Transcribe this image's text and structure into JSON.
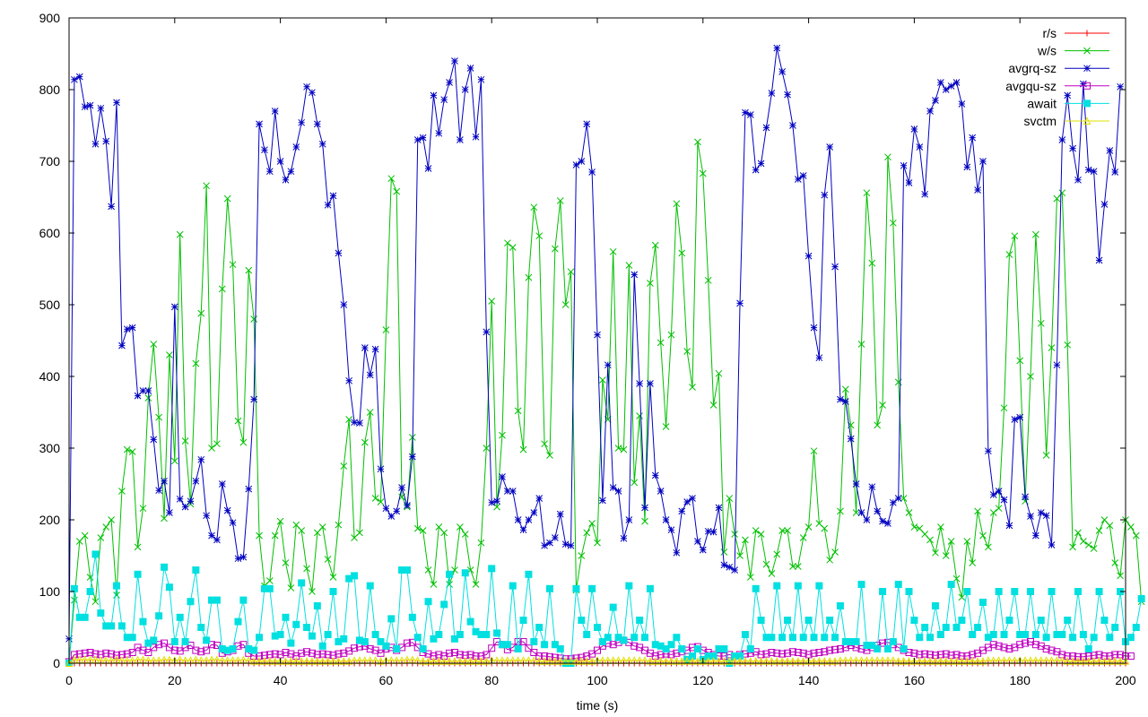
{
  "chart_data": {
    "type": "line",
    "title": "",
    "xlabel": "time (s)",
    "ylabel": "",
    "xlim": [
      0,
      200
    ],
    "ylim": [
      0,
      900
    ],
    "xticks": [
      0,
      20,
      40,
      60,
      80,
      100,
      120,
      140,
      160,
      180,
      200
    ],
    "yticks": [
      0,
      100,
      200,
      300,
      400,
      500,
      600,
      700,
      800,
      900
    ],
    "grid": false,
    "legend_position": "top-right",
    "x_start": 0,
    "x_step": 1,
    "series": [
      {
        "name": "r/s",
        "color": "#ff0000",
        "marker": "plus",
        "values": [
          0,
          0,
          0,
          0,
          0,
          0,
          0,
          0,
          0,
          0,
          0,
          0,
          0,
          0,
          0,
          0,
          0,
          0,
          0,
          0,
          0,
          0,
          0,
          0,
          0,
          0,
          0,
          0,
          0,
          0,
          0,
          0,
          0,
          0,
          0,
          0,
          0,
          0,
          0,
          0,
          0,
          0,
          0,
          0,
          0,
          0,
          0,
          0,
          0,
          0,
          0,
          0,
          0,
          0,
          0,
          0,
          0,
          0,
          0,
          0,
          0,
          0,
          0,
          0,
          0,
          0,
          0,
          0,
          0,
          0,
          0,
          0,
          0,
          0,
          0,
          0,
          0,
          0,
          0,
          0,
          0,
          0,
          0,
          0,
          0,
          0,
          0,
          0,
          0,
          0,
          0,
          0,
          0,
          0,
          0,
          0,
          0,
          0,
          0,
          0,
          0,
          0,
          0,
          0,
          0,
          0,
          0,
          0,
          0,
          0,
          0,
          0,
          0,
          0,
          0,
          0,
          0,
          0,
          0,
          0,
          0,
          0,
          0,
          0,
          0,
          0,
          0,
          0,
          0,
          0,
          0,
          0,
          0,
          0,
          0,
          0,
          0,
          0,
          0,
          0,
          0,
          0,
          0,
          0,
          0,
          0,
          0,
          0,
          0,
          0,
          0,
          0,
          0,
          0,
          0,
          0,
          0,
          0,
          0,
          0,
          0,
          0,
          0,
          0,
          0,
          0,
          0,
          0,
          0,
          0,
          0,
          0,
          0,
          0,
          0,
          0,
          0,
          0,
          0,
          0,
          0,
          0,
          0,
          0,
          0,
          0,
          0,
          0,
          0,
          0,
          0,
          0,
          0,
          0,
          0,
          0,
          0,
          0,
          0,
          0,
          0
        ]
      },
      {
        "name": "w/s",
        "color": "#00c000",
        "marker": "cross",
        "values": [
          0,
          88,
          170,
          178,
          120,
          86,
          175,
          190,
          200,
          95,
          240,
          298,
          295,
          162,
          216,
          370,
          445,
          343,
          202,
          430,
          282,
          598,
          310,
          222,
          418,
          488,
          666,
          300,
          306,
          522,
          648,
          556,
          338,
          308,
          548,
          480,
          178,
          108,
          115,
          178,
          198,
          140,
          105,
          193,
          185,
          132,
          100,
          182,
          190,
          145,
          120,
          193,
          275,
          340,
          175,
          182,
          308,
          350,
          230,
          225,
          465,
          676,
          658,
          232,
          218,
          315,
          188,
          185,
          130,
          110,
          190,
          182,
          110,
          130,
          190,
          180,
          130,
          110,
          168,
          300,
          505,
          218,
          318,
          586,
          580,
          352,
          298,
          538,
          636,
          596,
          306,
          290,
          578,
          645,
          500,
          546,
          102,
          150,
          182,
          195,
          168,
          395,
          340,
          574,
          300,
          298,
          555,
          252,
          345,
          198,
          530,
          583,
          447,
          330,
          458,
          641,
          572,
          435,
          385,
          727,
          683,
          534,
          360,
          404,
          155,
          230,
          180,
          150,
          172,
          120,
          185,
          180,
          138,
          125,
          152,
          185,
          185,
          135,
          135,
          175,
          190,
          296,
          195,
          188,
          144,
          155,
          212,
          382,
          332,
          210,
          445,
          656,
          558,
          332,
          360,
          706,
          614,
          392,
          230,
          210,
          190,
          188,
          180,
          172,
          154,
          190,
          150,
          170,
          118,
          92,
          170,
          140,
          212,
          178,
          162,
          210,
          216,
          356,
          570,
          596,
          422,
          226,
          400,
          598,
          474,
          290,
          440,
          648,
          656,
          444,
          162,
          182,
          170,
          165,
          160,
          185,
          200,
          192,
          140,
          122,
          200,
          190,
          178,
          86
        ]
      },
      {
        "name": "avgrq-sz",
        "color": "#0000c0",
        "marker": "star",
        "values": [
          34,
          814,
          818,
          776,
          778,
          724,
          774,
          728,
          637,
          782,
          443,
          466,
          468,
          373,
          380,
          380,
          312,
          241,
          254,
          210,
          497,
          229,
          218,
          226,
          254,
          284,
          206,
          178,
          172,
          250,
          213,
          196,
          146,
          148,
          243,
          368,
          752,
          716,
          686,
          770,
          700,
          674,
          686,
          720,
          754,
          804,
          796,
          752,
          724,
          639,
          652,
          572,
          500,
          394,
          336,
          335,
          440,
          402,
          438,
          271,
          216,
          205,
          212,
          245,
          220,
          288,
          730,
          733,
          690,
          792,
          739,
          786,
          810,
          840,
          730,
          800,
          830,
          734,
          814,
          462,
          224,
          226,
          260,
          240,
          240,
          200,
          186,
          200,
          210,
          230,
          164,
          168,
          175,
          208,
          166,
          164,
          695,
          700,
          752,
          685,
          458,
          227,
          416,
          245,
          240,
          174,
          200,
          542,
          390,
          217,
          390,
          262,
          240,
          200,
          186,
          154,
          212,
          225,
          230,
          170,
          158,
          184,
          183,
          217,
          137,
          134,
          130,
          502,
          768,
          765,
          688,
          697,
          747,
          795,
          858,
          825,
          793,
          750,
          675,
          680,
          568,
          468,
          426,
          653,
          720,
          553,
          368,
          365,
          313,
          250,
          210,
          200,
          246,
          212,
          198,
          195,
          224,
          230,
          694,
          670,
          745,
          720,
          654,
          770,
          785,
          810,
          800,
          805,
          810,
          780,
          692,
          733,
          660,
          700,
          296,
          235,
          240,
          228,
          192,
          340,
          343,
          232,
          205,
          178,
          210,
          206,
          165,
          416,
          730,
          792,
          718,
          674,
          808,
          688,
          686,
          562,
          640,
          715,
          685,
          804
        ]
      },
      {
        "name": "avgqu-sz",
        "color": "#c000c0",
        "marker": "square",
        "values": [
          2,
          12,
          13,
          14,
          15,
          13,
          12,
          14,
          13,
          11,
          12,
          13,
          15,
          22,
          18,
          15,
          22,
          26,
          28,
          22,
          18,
          17,
          22,
          25,
          18,
          16,
          18,
          26,
          25,
          14,
          16,
          18,
          24,
          26,
          14,
          10,
          10,
          11,
          12,
          13,
          12,
          15,
          13,
          10,
          14,
          16,
          14,
          12,
          13,
          12,
          11,
          13,
          14,
          17,
          21,
          23,
          24,
          20,
          18,
          14,
          20,
          22,
          18,
          22,
          28,
          29,
          22,
          15,
          13,
          10,
          12,
          10,
          14,
          15,
          12,
          11,
          12,
          10,
          10,
          12,
          21,
          30,
          26,
          19,
          22,
          30,
          30,
          21,
          15,
          10,
          10,
          9,
          8,
          7,
          6,
          6,
          7,
          8,
          10,
          13,
          18,
          24,
          28,
          26,
          29,
          32,
          29,
          24,
          22,
          18,
          14,
          10,
          12,
          13,
          12,
          14,
          16,
          18,
          22,
          23,
          18,
          15,
          12,
          10,
          10,
          12,
          10,
          12,
          13,
          14,
          16,
          12,
          13,
          15,
          14,
          13,
          14,
          16,
          15,
          14,
          12,
          14,
          15,
          16,
          18,
          19,
          20,
          22,
          25,
          22,
          20,
          18,
          22,
          25,
          28,
          29,
          26,
          22,
          18,
          15,
          14,
          12,
          13,
          12,
          11,
          12,
          13,
          11,
          12,
          10,
          10,
          12,
          14,
          18,
          22,
          26,
          24,
          22,
          20,
          22,
          26,
          28,
          30,
          26,
          24,
          20,
          18,
          16,
          12,
          10,
          10,
          9,
          9,
          10,
          11,
          12,
          10,
          10,
          12,
          12,
          10,
          10
        ]
      },
      {
        "name": "await",
        "color": "#00e0e0",
        "marker": "filled-square",
        "values": [
          0,
          104,
          64,
          64,
          100,
          152,
          70,
          52,
          52,
          108,
          52,
          36,
          36,
          124,
          58,
          28,
          32,
          66,
          134,
          106,
          30,
          64,
          30,
          86,
          130,
          50,
          32,
          88,
          88,
          20,
          18,
          20,
          58,
          88,
          20,
          18,
          36,
          104,
          104,
          38,
          40,
          64,
          28,
          54,
          112,
          50,
          38,
          80,
          24,
          40,
          100,
          30,
          34,
          118,
          122,
          32,
          30,
          108,
          40,
          30,
          24,
          62,
          20,
          130,
          130,
          64,
          36,
          20,
          86,
          34,
          40,
          82,
          124,
          34,
          40,
          126,
          58,
          44,
          40,
          40,
          132,
          42,
          26,
          26,
          108,
          20,
          60,
          124,
          30,
          50,
          26,
          104,
          26,
          20,
          0,
          0,
          104,
          60,
          40,
          104,
          50,
          30,
          36,
          78,
          36,
          32,
          108,
          36,
          60,
          36,
          104,
          26,
          24,
          20,
          26,
          36,
          20,
          5,
          10,
          20,
          5,
          10,
          10,
          20,
          20,
          0,
          10,
          10,
          40,
          20,
          104,
          60,
          36,
          36,
          108,
          36,
          60,
          36,
          108,
          36,
          60,
          36,
          108,
          36,
          60,
          36,
          80,
          30,
          30,
          30,
          110,
          25,
          25,
          20,
          100,
          20,
          30,
          110,
          20,
          100,
          60,
          36,
          50,
          36,
          80,
          40,
          50,
          110,
          50,
          60,
          100,
          40,
          50,
          85,
          36,
          40,
          100,
          40,
          60,
          100,
          40,
          40,
          100,
          40,
          60,
          36,
          100,
          40,
          40,
          60,
          36,
          100,
          40,
          20,
          36,
          100,
          60,
          36,
          50,
          100,
          30,
          36,
          50,
          90
        ]
      },
      {
        "name": "svctm",
        "color": "#e0e000",
        "marker": "triangle",
        "values": [
          0,
          5,
          5,
          5,
          5,
          5,
          4,
          4,
          4,
          5,
          4,
          4,
          4,
          5,
          5,
          4,
          4,
          4,
          5,
          5,
          4,
          5,
          4,
          4,
          5,
          4,
          4,
          5,
          5,
          4,
          4,
          4,
          4,
          5,
          4,
          3,
          3,
          3,
          3,
          3,
          3,
          3,
          3,
          3,
          3,
          3,
          3,
          3,
          3,
          3,
          3,
          3,
          3,
          3,
          4,
          4,
          4,
          4,
          4,
          3,
          4,
          4,
          4,
          4,
          5,
          5,
          4,
          3,
          3,
          3,
          3,
          3,
          3,
          3,
          3,
          3,
          3,
          3,
          3,
          3,
          4,
          4,
          4,
          4,
          4,
          4,
          4,
          4,
          4,
          3,
          3,
          3,
          3,
          3,
          3,
          3,
          3,
          3,
          3,
          3,
          4,
          4,
          4,
          4,
          4,
          4,
          4,
          4,
          4,
          4,
          3,
          3,
          3,
          3,
          3,
          3,
          3,
          3,
          3,
          3,
          3,
          3,
          3,
          3,
          3,
          3,
          3,
          3,
          3,
          3,
          3,
          3,
          3,
          3,
          3,
          3,
          3,
          3,
          3,
          3,
          3,
          3,
          3,
          3,
          3,
          3,
          4,
          4,
          4,
          4,
          4,
          4,
          4,
          4,
          4,
          4,
          4,
          3,
          3,
          3,
          3,
          3,
          3,
          3,
          3,
          3,
          3,
          3,
          3,
          3,
          3,
          3,
          3,
          3,
          4,
          4,
          4,
          4,
          4,
          4,
          4,
          4,
          4,
          4,
          4,
          4,
          4,
          4,
          4,
          3,
          3,
          3,
          3,
          3,
          3,
          3,
          3,
          3,
          3,
          3,
          3
        ]
      }
    ]
  }
}
